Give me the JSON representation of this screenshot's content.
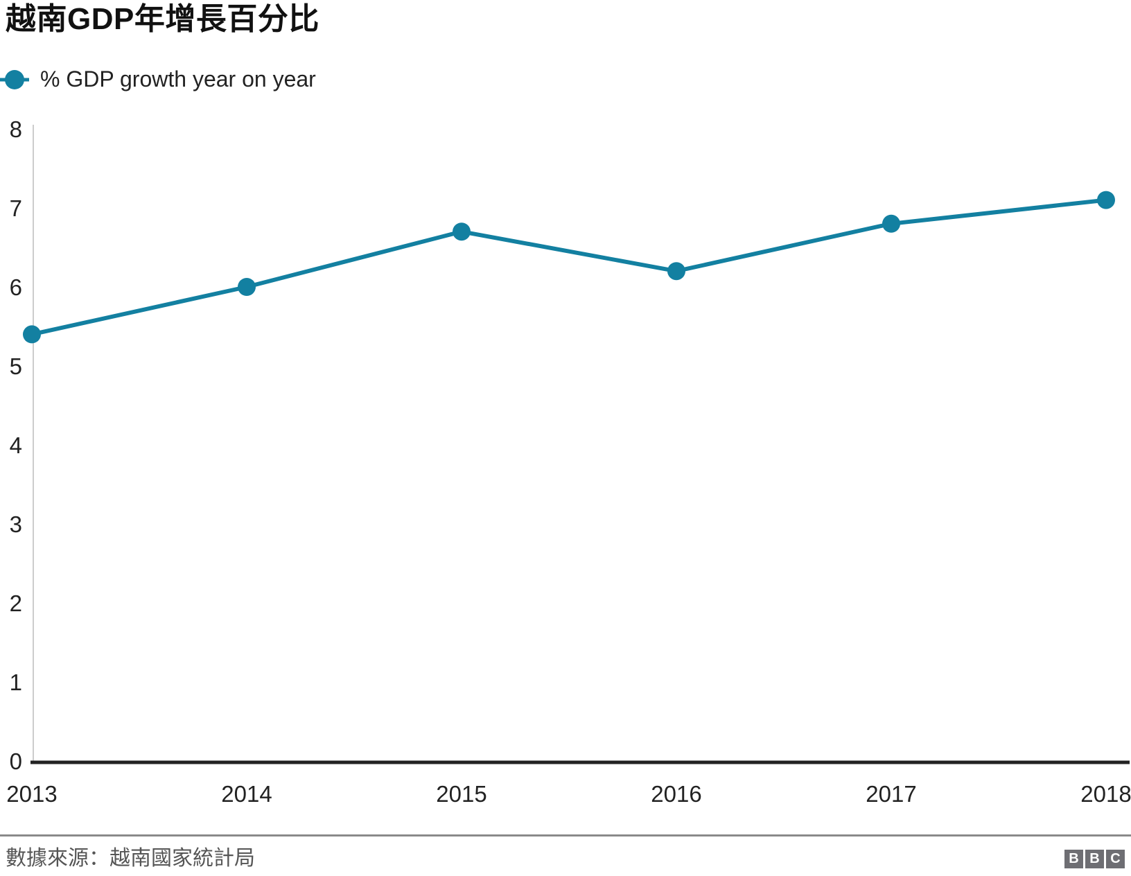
{
  "title": "越南GDP年增長百分比",
  "legend": {
    "label": "% GDP growth year on year"
  },
  "footer": {
    "source": "數據來源：越南國家統計局",
    "logo_letters": [
      "B",
      "B",
      "C"
    ]
  },
  "colors": {
    "accent": "#1380A1",
    "text": "#222222",
    "axis_line": "#CCCCCC",
    "baseline": "#222222",
    "divider": "#8A8A8A",
    "muted_text": "#555555",
    "logo_bg": "#6E6E73",
    "logo_text": "#FFFFFF"
  },
  "chart_data": {
    "type": "line",
    "title": "越南GDP年增長百分比",
    "x": [
      2013,
      2014,
      2015,
      2016,
      2017,
      2018
    ],
    "series": [
      {
        "name": "% GDP growth year on year",
        "values": [
          5.4,
          6.0,
          6.7,
          6.2,
          6.8,
          7.1
        ]
      }
    ],
    "xlabel": "",
    "ylabel": "",
    "ylim": [
      0,
      8
    ],
    "yticks": [
      0,
      1,
      2,
      3,
      4,
      5,
      6,
      7,
      8
    ],
    "grid": false,
    "legend_position": "top-left",
    "source": "數據來源：越南國家統計局"
  }
}
